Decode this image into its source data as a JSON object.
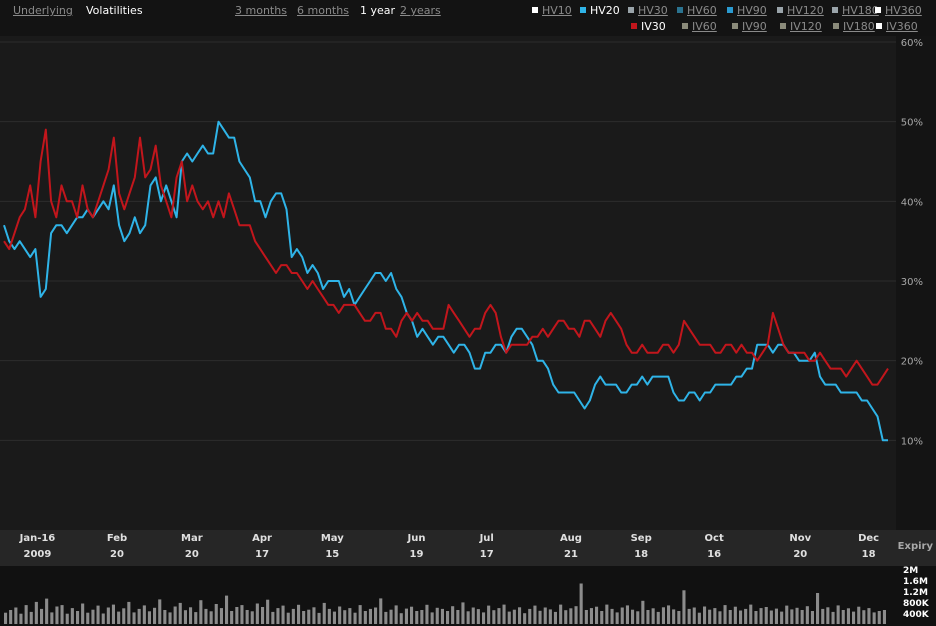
{
  "views": [
    "Underlying",
    "Volatilities"
  ],
  "active_view": "Volatilities",
  "ranges": [
    "3 months",
    "6 months",
    "1 year",
    "2 years"
  ],
  "active_range": "1 year",
  "legend": {
    "row1": [
      {
        "label": "HV10",
        "color": "#ffffff",
        "on": false
      },
      {
        "label": "HV20",
        "color": "#2fb4e8",
        "on": true
      },
      {
        "label": "HV30",
        "color": "#9aa4aa",
        "on": false
      },
      {
        "label": "HV60",
        "color": "#2a7390",
        "on": false
      },
      {
        "label": "HV90",
        "color": "#2a9ad0",
        "on": false
      },
      {
        "label": "HV120",
        "color": "#9aa4aa",
        "on": false
      },
      {
        "label": "HV180",
        "color": "#9aa4aa",
        "on": false
      },
      {
        "label": "HV360",
        "color": "#ffffff",
        "on": false
      }
    ],
    "row2": [
      {
        "label": "IV30",
        "color": "#c2161c",
        "on": true
      },
      {
        "label": "IV60",
        "color": "#8a8a7a",
        "on": false
      },
      {
        "label": "IV90",
        "color": "#8a8a7a",
        "on": false
      },
      {
        "label": "IV120",
        "color": "#8a8a7a",
        "on": false
      },
      {
        "label": "IV180",
        "color": "#8a8a7a",
        "on": false
      },
      {
        "label": "IV360",
        "color": "#ffffff",
        "on": false
      }
    ]
  },
  "axis_labels": {
    "expiry": "Expiry"
  },
  "chart_data": {
    "type": "line",
    "y_unit": "%",
    "ylim": [
      0,
      60
    ],
    "y_ticks": [
      10,
      20,
      30,
      40,
      50,
      60
    ],
    "y_tick_labels": [
      "10%",
      "20%",
      "30%",
      "40%",
      "50%",
      "60%"
    ],
    "x_ticks": [
      {
        "top": "Jan-16",
        "bottom": "2009",
        "pos": 0.04
      },
      {
        "top": "Feb",
        "bottom": "20",
        "pos": 0.125
      },
      {
        "top": "Mar",
        "bottom": "20",
        "pos": 0.205
      },
      {
        "top": "Apr",
        "bottom": "17",
        "pos": 0.28
      },
      {
        "top": "May",
        "bottom": "15",
        "pos": 0.355
      },
      {
        "top": "Jun",
        "bottom": "19",
        "pos": 0.445
      },
      {
        "top": "Jul",
        "bottom": "17",
        "pos": 0.52
      },
      {
        "top": "Aug",
        "bottom": "21",
        "pos": 0.61
      },
      {
        "top": "Sep",
        "bottom": "18",
        "pos": 0.685
      },
      {
        "top": "Oct",
        "bottom": "16",
        "pos": 0.763
      },
      {
        "top": "Nov",
        "bottom": "20",
        "pos": 0.855
      },
      {
        "top": "Dec",
        "bottom": "18",
        "pos": 0.928
      }
    ],
    "series": [
      {
        "name": "HV20",
        "color": "#2fb4e8",
        "values": [
          37,
          35,
          34,
          35,
          34,
          33,
          34,
          28,
          29,
          36,
          37,
          37,
          36,
          37,
          38,
          38,
          39,
          38,
          39,
          40,
          39,
          42,
          37,
          35,
          36,
          38,
          36,
          37,
          42,
          43,
          40,
          42,
          40,
          38,
          45,
          46,
          45,
          46,
          47,
          46,
          46,
          50,
          49,
          48,
          48,
          45,
          44,
          43,
          40,
          40,
          38,
          40,
          41,
          41,
          39,
          33,
          34,
          33,
          31,
          32,
          31,
          29,
          30,
          30,
          30,
          28,
          29,
          27,
          28,
          29,
          30,
          31,
          31,
          30,
          31,
          29,
          28,
          26,
          25,
          23,
          24,
          23,
          22,
          23,
          23,
          22,
          21,
          22,
          22,
          21,
          19,
          19,
          21,
          21,
          22,
          22,
          21,
          23,
          24,
          24,
          23,
          22,
          20,
          20,
          19,
          17,
          16,
          16,
          16,
          16,
          15,
          14,
          15,
          17,
          18,
          17,
          17,
          17,
          16,
          16,
          17,
          17,
          18,
          17,
          18,
          18,
          18,
          18,
          16,
          15,
          15,
          16,
          16,
          15,
          16,
          16,
          17,
          17,
          17,
          17,
          18,
          18,
          19,
          19,
          22,
          22,
          22,
          21,
          22,
          22,
          21,
          21,
          20,
          20,
          20,
          21,
          18,
          17,
          17,
          17,
          16,
          16,
          16,
          16,
          15,
          15,
          14,
          13,
          10,
          10
        ]
      },
      {
        "name": "IV30",
        "color": "#c2161c",
        "values": [
          35,
          34,
          36,
          38,
          39,
          42,
          38,
          45,
          49,
          40,
          38,
          42,
          40,
          40,
          38,
          42,
          39,
          38,
          40,
          42,
          44,
          48,
          41,
          39,
          41,
          43,
          48,
          43,
          44,
          47,
          42,
          40,
          38,
          43,
          45,
          40,
          42,
          40,
          39,
          40,
          38,
          40,
          38,
          41,
          39,
          37,
          37,
          37,
          35,
          34,
          33,
          32,
          31,
          32,
          32,
          31,
          31,
          30,
          29,
          30,
          29,
          28,
          27,
          27,
          26,
          27,
          27,
          27,
          26,
          25,
          25,
          26,
          26,
          24,
          24,
          23,
          25,
          26,
          25,
          26,
          25,
          25,
          24,
          24,
          24,
          27,
          26,
          25,
          24,
          23,
          24,
          24,
          26,
          27,
          26,
          23,
          21,
          22,
          22,
          22,
          22,
          23,
          23,
          24,
          23,
          24,
          25,
          25,
          24,
          24,
          23,
          25,
          25,
          24,
          23,
          25,
          26,
          25,
          24,
          22,
          21,
          21,
          22,
          21,
          21,
          21,
          22,
          22,
          21,
          22,
          25,
          24,
          23,
          22,
          22,
          22,
          21,
          21,
          22,
          22,
          21,
          22,
          21,
          21,
          20,
          21,
          22,
          26,
          24,
          22,
          21,
          21,
          21,
          21,
          20,
          20,
          21,
          20,
          19,
          19,
          19,
          18,
          19,
          20,
          19,
          18,
          17,
          17,
          18,
          19
        ]
      }
    ],
    "volume": {
      "y_tick_labels": [
        "2M",
        "1.6M",
        "1.2M",
        "800K",
        "400K"
      ],
      "ylim": [
        0,
        2000000
      ],
      "values": [
        420000,
        520000,
        610000,
        380000,
        700000,
        450000,
        820000,
        560000,
        940000,
        430000,
        650000,
        700000,
        380000,
        590000,
        480000,
        760000,
        420000,
        530000,
        680000,
        390000,
        610000,
        720000,
        460000,
        580000,
        820000,
        430000,
        560000,
        690000,
        470000,
        600000,
        910000,
        520000,
        430000,
        650000,
        780000,
        510000,
        620000,
        440000,
        880000,
        560000,
        470000,
        740000,
        590000,
        1050000,
        480000,
        630000,
        700000,
        520000,
        470000,
        760000,
        630000,
        900000,
        450000,
        590000,
        680000,
        420000,
        560000,
        710000,
        480000,
        530000,
        620000,
        410000,
        780000,
        560000,
        460000,
        650000,
        510000,
        590000,
        420000,
        700000,
        480000,
        560000,
        610000,
        950000,
        450000,
        530000,
        690000,
        400000,
        570000,
        640000,
        480000,
        520000,
        710000,
        430000,
        600000,
        560000,
        480000,
        660000,
        520000,
        800000,
        470000,
        610000,
        550000,
        430000,
        680000,
        510000,
        590000,
        720000,
        460000,
        530000,
        620000,
        400000,
        560000,
        680000,
        490000,
        610000,
        540000,
        450000,
        720000,
        510000,
        580000,
        660000,
        1500000,
        520000,
        590000,
        640000,
        480000,
        720000,
        560000,
        430000,
        610000,
        690000,
        530000,
        470000,
        860000,
        520000,
        580000,
        450000,
        620000,
        690000,
        540000,
        480000,
        1250000,
        560000,
        610000,
        420000,
        650000,
        530000,
        590000,
        470000,
        700000,
        520000,
        640000,
        500000,
        560000,
        720000,
        480000,
        590000,
        630000,
        500000,
        570000,
        460000,
        680000,
        540000,
        600000,
        520000,
        660000,
        480000,
        1150000,
        560000,
        620000,
        450000,
        690000,
        520000,
        580000,
        460000,
        640000,
        510000,
        590000,
        430000,
        480000,
        520000
      ]
    }
  }
}
